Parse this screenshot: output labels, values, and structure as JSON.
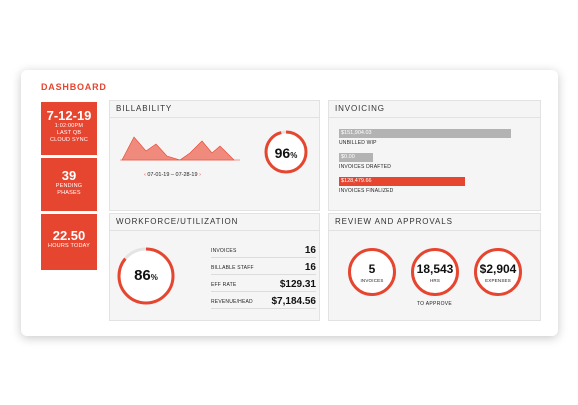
{
  "dashboard": {
    "title": "DASHBOARD"
  },
  "tiles": [
    {
      "big": "7-12-19",
      "lines": [
        "1:02:00PM",
        "LAST QB",
        "CLOUD SYNC"
      ]
    },
    {
      "big": "39",
      "lines": [
        "PENDING",
        "PHASES"
      ]
    },
    {
      "big": "22.50",
      "lines": [
        "HOURS TODAY"
      ]
    }
  ],
  "billability": {
    "title": "BILLABILITY",
    "date_range": "07-01-19 – 07-28-19",
    "percent_value": "96",
    "percent_sign": "%",
    "progress": 0.96
  },
  "invoicing": {
    "title": "INVOICING",
    "bars": [
      {
        "value": "$151,904.03",
        "caption": "UNBILLED WIP",
        "fraction": 1.0,
        "color": "#b3b3b3"
      },
      {
        "value": "$0.00",
        "caption": "INVOICES DRAFTED",
        "fraction": 0.2,
        "color": "#b3b3b3"
      },
      {
        "value": "$128,479.66",
        "caption": "INVOICES FINALIZED",
        "fraction": 0.73,
        "color": "#e6452f"
      }
    ]
  },
  "workforce": {
    "title": "WORKFORCE/UTILIZATION",
    "percent_value": "86",
    "percent_sign": "%",
    "progress": 0.86,
    "rows": [
      {
        "label": "INVOICES",
        "value": "16"
      },
      {
        "label": "BILLABLE STAFF",
        "value": "16"
      },
      {
        "label": "EFF RATE",
        "value": "$129.31"
      },
      {
        "label": "REVENUE/HEAD",
        "value": "$7,184.56"
      }
    ]
  },
  "review": {
    "title": "REVIEW AND APPROVALS",
    "circles": [
      {
        "value": "5",
        "label": "INVOICES"
      },
      {
        "value": "18,543",
        "label": "HRS"
      },
      {
        "value": "$2,904",
        "label": "EXPENSES"
      }
    ],
    "caption": "TO APPROVE"
  },
  "colors": {
    "accent": "#e6452f",
    "chart_fill": "#f08a7c",
    "gray_bar": "#b3b3b3"
  }
}
